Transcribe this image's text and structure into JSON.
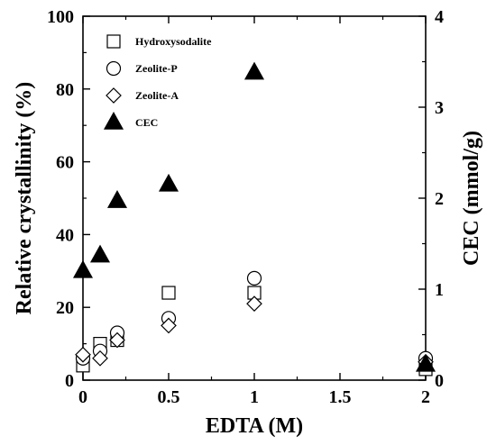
{
  "chart_data": {
    "type": "scatter",
    "title": "",
    "xlabel": "EDTA (M)",
    "ylabel": "Relative crystallinity (%)",
    "y2label": "CEC (mmol/g)",
    "xlim": [
      0,
      2
    ],
    "ylim": [
      0,
      100
    ],
    "y2lim": [
      0,
      4
    ],
    "xticks": [
      0,
      0.5,
      1,
      1.5,
      2
    ],
    "xtick_labels": [
      "0",
      "0.5",
      "1",
      "1.5",
      "2"
    ],
    "yticks": [
      0,
      20,
      40,
      60,
      80,
      100
    ],
    "ytick_labels": [
      "0",
      "20",
      "40",
      "60",
      "80",
      "100"
    ],
    "y2ticks": [
      0,
      1,
      2,
      3,
      4
    ],
    "y2tick_labels": [
      "0",
      "1",
      "2",
      "3",
      "4"
    ],
    "grid": false,
    "legend_position": "top-left",
    "series": [
      {
        "name": "Hydroxysodalite",
        "marker": "square-open",
        "axis": "left",
        "x": [
          0,
          0.1,
          0.2,
          0.5,
          1,
          2
        ],
        "y": [
          4,
          10,
          11,
          24,
          24,
          3
        ]
      },
      {
        "name": "Zeolite-P",
        "marker": "circle-open",
        "axis": "left",
        "x": [
          0,
          0.1,
          0.2,
          0.5,
          1,
          2
        ],
        "y": [
          6,
          8,
          13,
          17,
          28,
          6
        ]
      },
      {
        "name": "Zeolite-A",
        "marker": "diamond-open",
        "axis": "left",
        "x": [
          0,
          0.1,
          0.2,
          0.5,
          1,
          2
        ],
        "y": [
          7,
          6,
          11,
          15,
          21,
          5
        ]
      },
      {
        "name": "CEC",
        "marker": "triangle-filled",
        "axis": "right",
        "x": [
          0,
          0.1,
          0.2,
          0.5,
          1,
          2
        ],
        "y": [
          1.2,
          1.37,
          1.97,
          2.15,
          3.38,
          0.17
        ]
      }
    ]
  }
}
